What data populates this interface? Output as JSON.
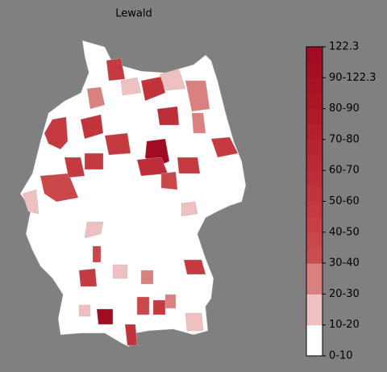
{
  "map": {
    "title": "Lewald",
    "colorbar": {
      "lim": [
        0,
        10
      ],
      "ticks": [
        {
          "value": 0,
          "label": "0-10"
        },
        {
          "value": 1,
          "label": "10-20"
        },
        {
          "value": 2,
          "label": "20-30"
        },
        {
          "value": 3,
          "label": "30-40"
        },
        {
          "value": 4,
          "label": "40-50"
        },
        {
          "value": 5,
          "label": "50-60"
        },
        {
          "value": 6,
          "label": "60-70"
        },
        {
          "value": 7,
          "label": "70-80"
        },
        {
          "value": 8,
          "label": "80-90"
        },
        {
          "value": 9,
          "label": "90-122.3"
        },
        {
          "value": 10,
          "label": "122.3"
        }
      ],
      "colors": [
        "#ffffff",
        "#ffffff",
        "#efc0c0",
        "#efc0c0",
        "#db8080",
        "#db8080",
        "#cb4d4f",
        "#c94649",
        "#c74044",
        "#c43a40",
        "#c1343c",
        "#be2e38",
        "#bb2934",
        "#b82430",
        "#b51f2d",
        "#b21a2a",
        "#ae1627",
        "#aa1225",
        "#a60e23",
        "#a20b21"
      ]
    }
  }
}
